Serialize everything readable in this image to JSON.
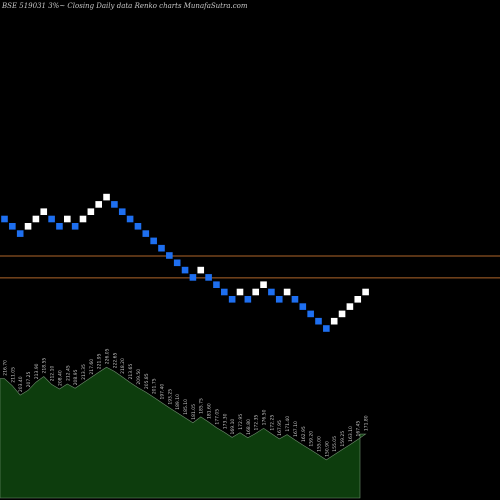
{
  "header": {
    "text": "BSE 519031 3%~  Closing Daily data  Renko  charts MunafaSutra.com"
  },
  "colors": {
    "background": "#000000",
    "up_brick": "#ffffff",
    "down_brick": "#1e6ff0",
    "reference_line": "#b0662a",
    "area_fill": "#0d3d0d",
    "area_stroke": "#6f8f6f",
    "label_text": "#c8c8c8"
  },
  "chart_data": {
    "type": "renko",
    "bricks": [
      {
        "col": 0,
        "level": 0,
        "dir": "down"
      },
      {
        "col": 1,
        "level": -1,
        "dir": "down"
      },
      {
        "col": 2,
        "level": -2,
        "dir": "down"
      },
      {
        "col": 3,
        "level": -1,
        "dir": "up"
      },
      {
        "col": 4,
        "level": 0,
        "dir": "up"
      },
      {
        "col": 5,
        "level": 1,
        "dir": "up"
      },
      {
        "col": 6,
        "level": 0,
        "dir": "down"
      },
      {
        "col": 7,
        "level": -1,
        "dir": "down"
      },
      {
        "col": 8,
        "level": 0,
        "dir": "up"
      },
      {
        "col": 9,
        "level": -1,
        "dir": "down"
      },
      {
        "col": 10,
        "level": 0,
        "dir": "up"
      },
      {
        "col": 11,
        "level": 1,
        "dir": "up"
      },
      {
        "col": 12,
        "level": 2,
        "dir": "up"
      },
      {
        "col": 13,
        "level": 3,
        "dir": "up"
      },
      {
        "col": 14,
        "level": 2,
        "dir": "down"
      },
      {
        "col": 15,
        "level": 1,
        "dir": "down"
      },
      {
        "col": 16,
        "level": 0,
        "dir": "down"
      },
      {
        "col": 17,
        "level": -1,
        "dir": "down"
      },
      {
        "col": 18,
        "level": -2,
        "dir": "down"
      },
      {
        "col": 19,
        "level": -3,
        "dir": "down"
      },
      {
        "col": 20,
        "level": -4,
        "dir": "down"
      },
      {
        "col": 21,
        "level": -5,
        "dir": "down"
      },
      {
        "col": 22,
        "level": -6,
        "dir": "down"
      },
      {
        "col": 23,
        "level": -7,
        "dir": "down"
      },
      {
        "col": 24,
        "level": -8,
        "dir": "down"
      },
      {
        "col": 25,
        "level": -7,
        "dir": "up"
      },
      {
        "col": 26,
        "level": -8,
        "dir": "down"
      },
      {
        "col": 27,
        "level": -9,
        "dir": "down"
      },
      {
        "col": 28,
        "level": -10,
        "dir": "down"
      },
      {
        "col": 29,
        "level": -11,
        "dir": "down"
      },
      {
        "col": 30,
        "level": -10,
        "dir": "up"
      },
      {
        "col": 31,
        "level": -11,
        "dir": "down"
      },
      {
        "col": 32,
        "level": -10,
        "dir": "up"
      },
      {
        "col": 33,
        "level": -9,
        "dir": "up"
      },
      {
        "col": 34,
        "level": -10,
        "dir": "down"
      },
      {
        "col": 35,
        "level": -11,
        "dir": "down"
      },
      {
        "col": 36,
        "level": -10,
        "dir": "up"
      },
      {
        "col": 37,
        "level": -11,
        "dir": "down"
      },
      {
        "col": 38,
        "level": -12,
        "dir": "down"
      },
      {
        "col": 39,
        "level": -13,
        "dir": "down"
      },
      {
        "col": 40,
        "level": -14,
        "dir": "down"
      },
      {
        "col": 41,
        "level": -15,
        "dir": "down"
      },
      {
        "col": 42,
        "level": -14,
        "dir": "up"
      },
      {
        "col": 43,
        "level": -13,
        "dir": "up"
      },
      {
        "col": 44,
        "level": -12,
        "dir": "up"
      },
      {
        "col": 45,
        "level": -11,
        "dir": "up"
      },
      {
        "col": 46,
        "level": -10,
        "dir": "up"
      }
    ],
    "reference_levels": [
      -5,
      -8
    ],
    "area_series": {
      "values": [
        216.7,
        211.05,
        203.4,
        207.25,
        213.9,
        218.55,
        212.1,
        208.4,
        212.45,
        208.95,
        213.35,
        217.6,
        221.95,
        226.05,
        222.65,
        218.2,
        213.65,
        209.5,
        205.85,
        201.75,
        197.4,
        193.25,
        189.1,
        185.1,
        181.05,
        185.75,
        181.6,
        177.05,
        173.3,
        169.1,
        172.95,
        168.8,
        172.35,
        176.5,
        172.25,
        167.95,
        171.4,
        167.1,
        162.95,
        159.2,
        155.0,
        150.9,
        155.05,
        159.25,
        163.1,
        167.45,
        171.8
      ],
      "labels": [
        "216.70",
        "211.05",
        "203.40",
        "207.25",
        "213.90",
        "218.55",
        "212.10",
        "208.40",
        "212.45",
        "208.95",
        "213.35",
        "217.60",
        "221.95",
        "226.05",
        "222.65",
        "218.20",
        "213.65",
        "209.50",
        "205.85",
        "201.75",
        "197.40",
        "193.25",
        "189.10",
        "185.10",
        "181.05",
        "185.75",
        "181.60",
        "177.05",
        "173.30",
        "169.10",
        "172.95",
        "168.80",
        "172.35",
        "176.50",
        "172.25",
        "167.95",
        "171.40",
        "167.10",
        "162.95",
        "159.20",
        "155.00",
        "150.90",
        "155.05",
        "159.25",
        "163.10",
        "167.45",
        "171.80"
      ],
      "ylim": [
        120,
        240
      ]
    }
  }
}
